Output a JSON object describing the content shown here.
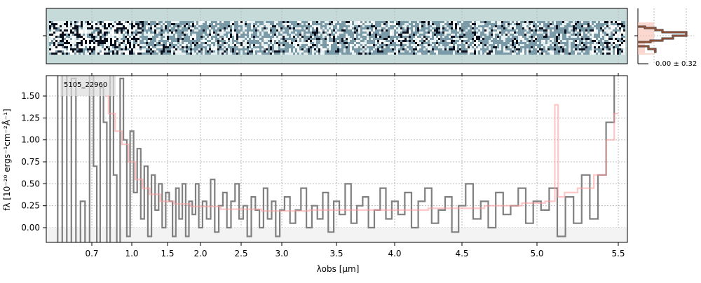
{
  "chart_data": {
    "type": "line",
    "object_label": "5105_22960",
    "xlabel": "λobs [µm]",
    "ylabel": "fλ [10⁻²⁰ ergs⁻¹cm⁻²Å⁻¹]",
    "xticks": [
      0.7,
      1.0,
      1.5,
      2.0,
      2.5,
      3.0,
      3.5,
      4.0,
      4.5,
      5.0,
      5.5
    ],
    "xtick_labels": [
      "0.7",
      "1.0",
      "1.5",
      "2.0",
      "2.5",
      "3.0",
      "3.5",
      "4.0",
      "4.5",
      "5.0",
      "5.5"
    ],
    "yticks": [
      0,
      0.25,
      0.5,
      0.75,
      1.0,
      1.25,
      1.5
    ],
    "ytick_labels": [
      "0.00",
      "0.25",
      "0.50",
      "0.75",
      "1.00",
      "1.25",
      "1.50"
    ],
    "ylim": [
      -0.17,
      1.73
    ],
    "grid": true,
    "series": [
      {
        "name": "spectrum",
        "color": "#808080",
        "x": [
          0.5,
          0.525,
          0.55,
          0.575,
          0.6,
          0.625,
          0.65,
          0.675,
          0.7,
          0.725,
          0.75,
          0.775,
          0.8,
          0.825,
          0.85,
          0.875,
          0.9,
          0.925,
          0.95,
          0.975,
          1.0,
          1.05,
          1.1,
          1.15,
          1.2,
          1.25,
          1.3,
          1.35,
          1.4,
          1.45,
          1.5,
          1.55,
          1.6,
          1.65,
          1.7,
          1.75,
          1.8,
          1.85,
          1.9,
          1.95,
          2.0,
          2.05,
          2.1,
          2.15,
          2.2,
          2.25,
          2.3,
          2.35,
          2.4,
          2.45,
          2.5,
          2.55,
          2.6,
          2.65,
          2.7,
          2.75,
          2.8,
          2.85,
          2.9,
          2.95,
          3.0,
          3.05,
          3.1,
          3.15,
          3.2,
          3.25,
          3.3,
          3.35,
          3.4,
          3.45,
          3.5,
          3.55,
          3.6,
          3.65,
          3.7,
          3.75,
          3.8,
          3.85,
          3.9,
          3.95,
          4.0,
          4.05,
          4.1,
          4.15,
          4.2,
          4.25,
          4.3,
          4.35,
          4.4,
          4.45,
          4.5,
          4.55,
          4.6,
          4.65,
          4.7,
          4.75,
          4.8,
          4.85,
          4.9,
          4.95,
          5.0,
          5.05,
          5.1,
          5.15,
          5.2,
          5.25,
          5.3,
          5.35,
          5.4,
          5.45,
          5.5
        ],
        "y": [
          2,
          -0.5,
          2,
          -0.5,
          1.7,
          -0.3,
          0.3,
          -0.4,
          2,
          0.7,
          -0.3,
          1.6,
          1.2,
          -0.3,
          1.8,
          0.6,
          -0.2,
          1.7,
          1.0,
          -0.1,
          1.1,
          0.4,
          0.9,
          0.1,
          0.7,
          -0.1,
          0.6,
          0.2,
          0.5,
          0.0,
          0.4,
          0.3,
          -0.1,
          0.45,
          0.1,
          0.5,
          -0.1,
          0.3,
          0.15,
          0.5,
          0.0,
          0.3,
          0.1,
          0.55,
          -0.05,
          0.25,
          0.4,
          0.0,
          0.3,
          0.5,
          0.1,
          0.25,
          -0.1,
          0.35,
          0.2,
          0.0,
          0.45,
          0.1,
          0.3,
          -0.1,
          0.2,
          0.35,
          0.05,
          0.2,
          0.45,
          0.0,
          0.25,
          0.1,
          0.4,
          -0.05,
          0.3,
          0.15,
          0.5,
          0.05,
          0.25,
          0.35,
          0.0,
          0.2,
          0.45,
          0.1,
          0.3,
          0.15,
          0.4,
          0.0,
          0.3,
          0.45,
          0.05,
          0.2,
          0.35,
          -0.05,
          0.25,
          0.5,
          0.1,
          0.3,
          0.0,
          0.4,
          0.15,
          0.25,
          0.45,
          0.05,
          0.3,
          0.2,
          0.45,
          -0.1,
          0.35,
          0.05,
          0.6,
          0.1,
          0.6,
          1.2,
          1.8
        ]
      },
      {
        "name": "model",
        "color": "#ff9999",
        "x": [
          0.8,
          0.85,
          0.9,
          0.95,
          1.0,
          1.1,
          1.2,
          1.3,
          1.5,
          1.7,
          2.0,
          2.5,
          3.0,
          3.5,
          4.0,
          4.5,
          4.8,
          5.0,
          5.1,
          5.12,
          5.14,
          5.2,
          5.3,
          5.4,
          5.45,
          5.5
        ],
        "y": [
          1.5,
          1.3,
          1.1,
          0.95,
          0.75,
          0.55,
          0.45,
          0.38,
          0.3,
          0.27,
          0.24,
          0.21,
          0.19,
          0.2,
          0.2,
          0.22,
          0.25,
          0.28,
          0.3,
          1.4,
          0.35,
          0.4,
          0.45,
          0.6,
          1.0,
          1.3
        ]
      }
    ],
    "histogram_label": "0.00 ± 0.32"
  }
}
